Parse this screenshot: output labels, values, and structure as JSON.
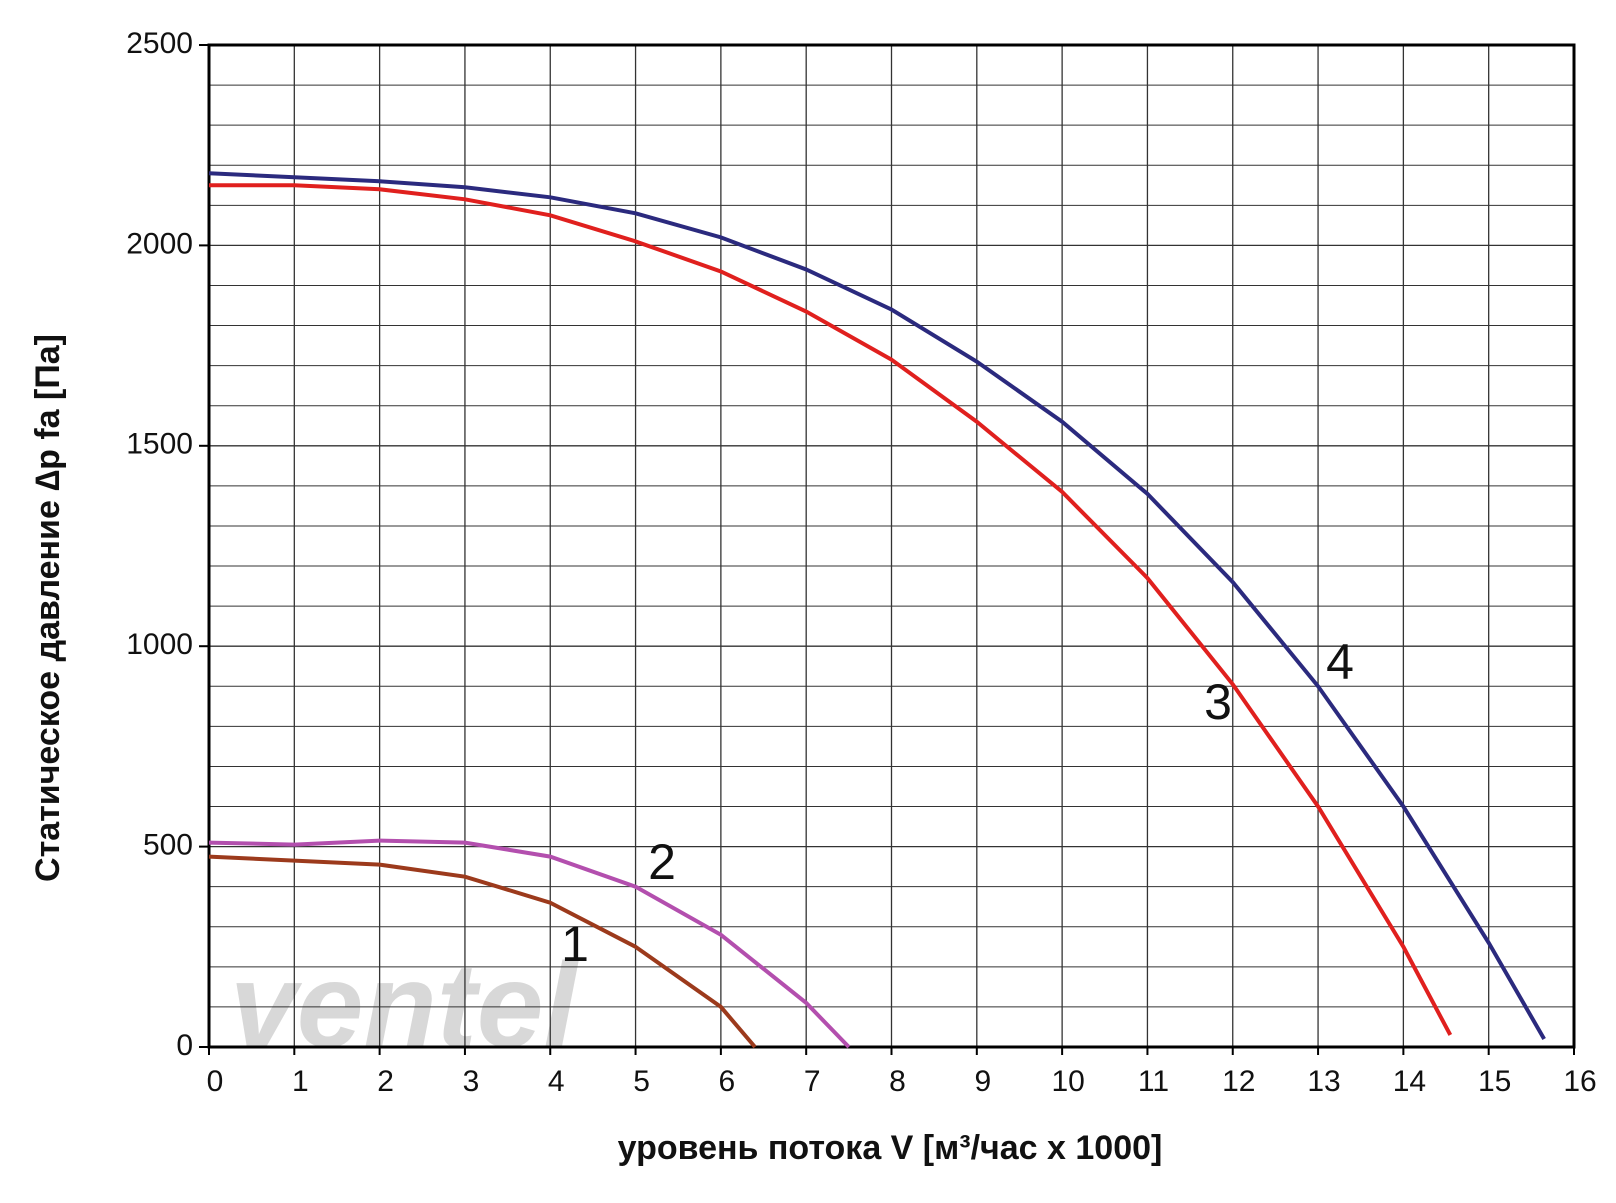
{
  "chart_data": {
    "type": "line",
    "xlabel": "уровень потока  V [м³/час x 1000]",
    "ylabel": "Статическое давление  ∆p fa [Па]",
    "watermark": "ventel",
    "xlim": [
      0,
      16
    ],
    "xticks": [
      0,
      1,
      2,
      3,
      4,
      5,
      6,
      7,
      8,
      9,
      10,
      11,
      12,
      13,
      14,
      15,
      16
    ],
    "ylim": [
      0,
      2500
    ],
    "yticks": [
      0,
      500,
      1000,
      1500,
      2000,
      2500
    ],
    "ygrid_minor": [
      100,
      200,
      300,
      400,
      600,
      700,
      800,
      900,
      1100,
      1200,
      1300,
      1400,
      1600,
      1700,
      1800,
      1900,
      2100,
      2200,
      2300,
      2400
    ],
    "grid": true,
    "series": [
      {
        "name": "1",
        "color": "#9c3a1c",
        "x": [
          0,
          1,
          2,
          3,
          4,
          5,
          6,
          6.4
        ],
        "values": [
          475,
          465,
          455,
          425,
          360,
          250,
          100,
          0
        ]
      },
      {
        "name": "2",
        "color": "#b34fae",
        "x": [
          0,
          1,
          2,
          3,
          4,
          5,
          6,
          7,
          7.5
        ],
        "values": [
          510,
          505,
          515,
          510,
          475,
          400,
          280,
          110,
          0
        ]
      },
      {
        "name": "3",
        "color": "#e0201e",
        "x": [
          0,
          1,
          2,
          3,
          4,
          5,
          6,
          7,
          8,
          9,
          10,
          11,
          12,
          13,
          14,
          14.55
        ],
        "values": [
          2150,
          2150,
          2140,
          2115,
          2075,
          2010,
          1935,
          1835,
          1715,
          1560,
          1385,
          1170,
          905,
          600,
          250,
          30
        ]
      },
      {
        "name": "4",
        "color": "#2b2a7e",
        "x": [
          0,
          1,
          2,
          3,
          4,
          5,
          6,
          7,
          8,
          9,
          10,
          11,
          12,
          13,
          14,
          15,
          15.65
        ],
        "values": [
          2180,
          2170,
          2160,
          2145,
          2120,
          2080,
          2020,
          1940,
          1840,
          1710,
          1560,
          1380,
          1160,
          900,
          600,
          260,
          20
        ]
      }
    ]
  }
}
